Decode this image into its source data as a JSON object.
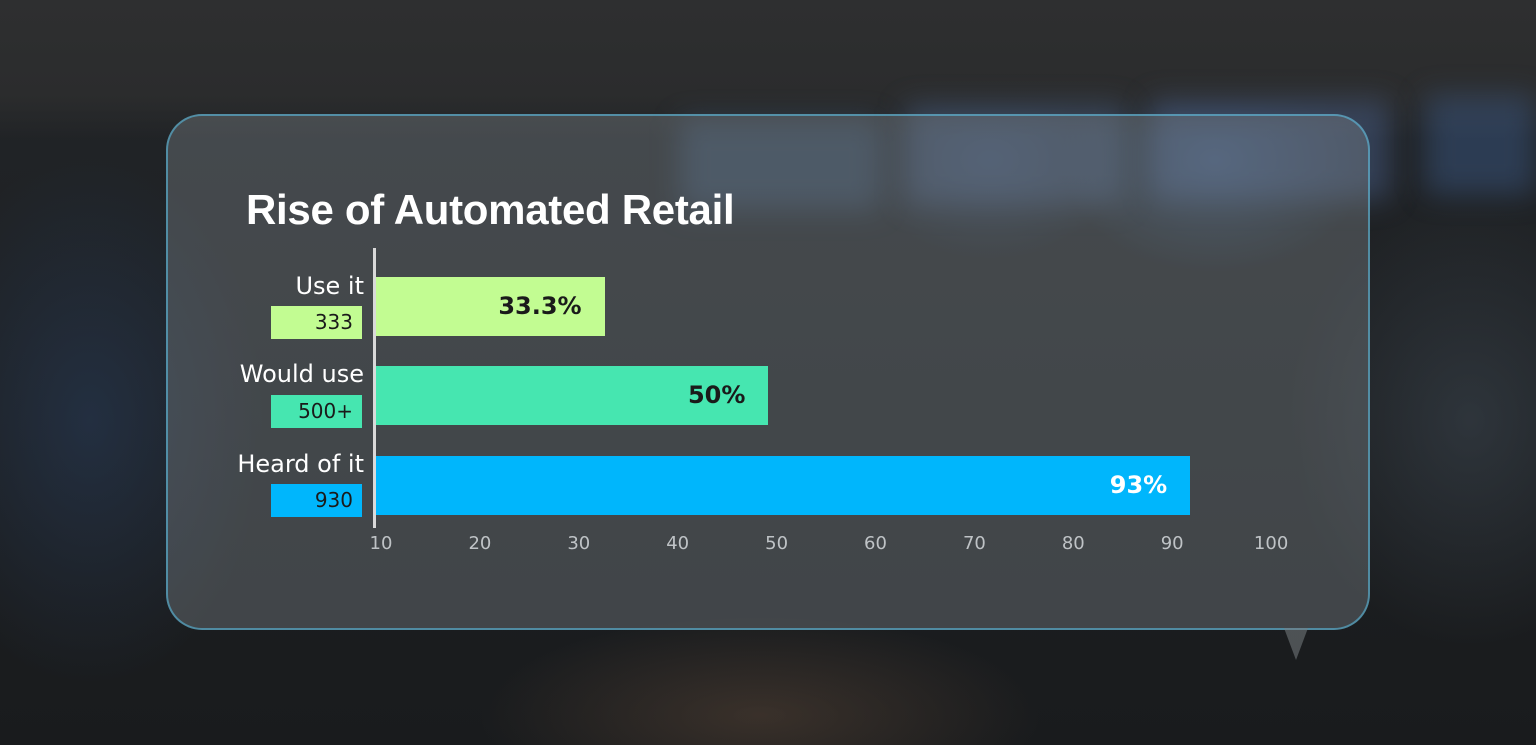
{
  "chart_data": {
    "type": "bar",
    "orientation": "horizontal",
    "title": "Rise of Automated Retail",
    "categories": [
      "Use it",
      "Would use",
      "Heard of it"
    ],
    "counts": [
      "333",
      "500+",
      "930"
    ],
    "values": [
      33.3,
      50,
      93
    ],
    "value_labels": [
      "33.3%",
      "50%",
      "93%"
    ],
    "xlim": [
      10,
      100
    ],
    "xticks": [
      "10",
      "20",
      "30",
      "40",
      "50",
      "60",
      "70",
      "80",
      "90",
      "100"
    ],
    "grid": false,
    "colors": [
      "#c2fc92",
      "#46e6b0",
      "#00b6fc"
    ],
    "label_colors": [
      "#1a1a1a",
      "#1a1a1a",
      "#ffffff"
    ]
  }
}
